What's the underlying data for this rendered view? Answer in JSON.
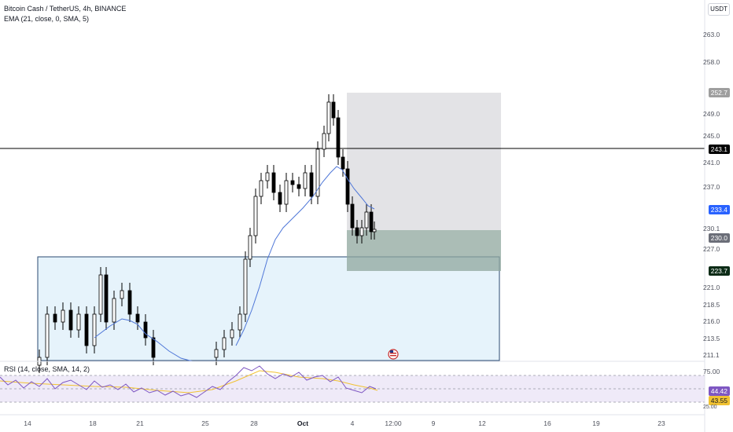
{
  "header": {
    "symbol_line": "Bitcoin Cash / TetherUS, 4h, BINANCE",
    "ema_line": "EMA (21, close, 0, SMA, 5)",
    "currency_button": "USDT"
  },
  "price_scale": {
    "ticks": [
      "263.0",
      "258.0",
      "249.0",
      "245.0",
      "241.0",
      "237.0",
      "230.1",
      "227.0",
      "221.0",
      "218.5",
      "216.0",
      "213.5",
      "211.1"
    ],
    "badges": {
      "target": "252.7",
      "hline": "243.1",
      "ema": "233.4",
      "last": "230.0",
      "stop": "223.7"
    }
  },
  "time_axis": {
    "labels": [
      "14",
      "18",
      "21",
      "25",
      "28",
      "Oct",
      "4",
      "12:00",
      "9",
      "12",
      "16",
      "19",
      "23"
    ]
  },
  "rsi": {
    "legend": "RSI (14, close, SMA, 14, 2)",
    "scale_top": "75.00",
    "scale_bottom": "25.00",
    "badge_rsi": "44.42",
    "badge_sma": "43.55"
  },
  "colors": {
    "ema_line": "#4f77d8",
    "hline": "#000000",
    "target_zone": "#e3e3e6",
    "stop_zone": "#8fa79e",
    "range_box": "#e6f3fb",
    "range_box_border": "#2a4a70",
    "rsi_line": "#7e57c2",
    "rsi_sma": "#f1c232",
    "rsi_band": "#efeaf8",
    "badge_ema": "#2962ff",
    "badge_dark": "#0b2b16"
  }
}
